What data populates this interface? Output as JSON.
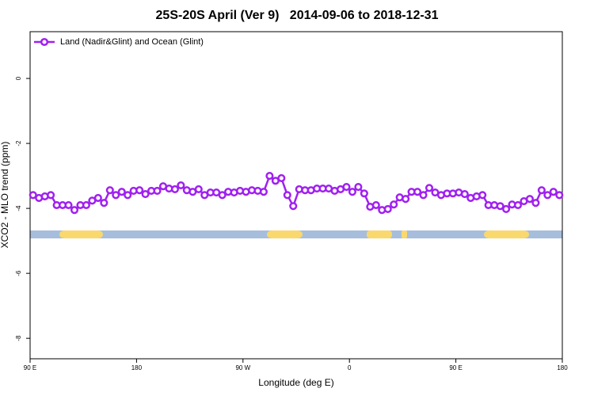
{
  "chart_data": {
    "type": "line",
    "title": "25S-20S April (Ver 9)   2014-09-06 to 2018-12-31",
    "x_label": "Longitude (deg E)",
    "y_label": "XCO2 - MLO trend (ppm)",
    "xlim": [
      90,
      540
    ],
    "xticks": [
      {
        "value": 90,
        "label": "90 E"
      },
      180,
      {
        "value": 270,
        "label": "90 W"
      },
      {
        "value": 360,
        "label": "0"
      },
      {
        "value": 450,
        "label": "90 E"
      },
      {
        "value": 540,
        "label": "180"
      }
    ],
    "ylim": [
      -8.63,
      1.44
    ],
    "yticks": [
      0,
      -2,
      -4,
      -6,
      -8
    ],
    "legend": "top-left",
    "x": [
      92.5,
      97.5,
      102.5,
      107.5,
      112.5,
      117.5,
      122.5,
      127.5,
      132.5,
      137.5,
      142.5,
      147.5,
      152.5,
      157.5,
      162.5,
      167.5,
      172.5,
      177.5,
      182.5,
      187.5,
      192.5,
      197.5,
      202.5,
      207.5,
      212.5,
      217.5,
      222.5,
      227.5,
      232.5,
      237.5,
      242.5,
      247.5,
      252.5,
      257.5,
      262.5,
      267.5,
      272.5,
      277.5,
      282.5,
      287.5,
      292.5,
      297.5,
      302.5,
      307.5,
      312.5,
      317.5,
      322.5,
      327.5,
      332.5,
      337.5,
      342.5,
      347.5,
      352.5,
      357.5,
      362.5,
      367.5,
      372.5,
      377.5,
      382.5,
      387.5,
      392.5,
      397.5,
      402.5,
      407.5,
      412.5,
      417.5,
      422.5,
      427.5,
      432.5,
      437.5,
      442.5,
      447.5,
      452.5,
      457.5,
      462.5,
      467.5,
      472.5,
      477.5,
      482.5,
      487.5,
      492.5,
      497.5,
      502.5,
      507.5,
      512.5,
      517.5,
      522.5,
      527.5,
      532.5,
      537.5
    ],
    "series": [
      {
        "name": "Land (Nadir&Glint) and Ocean (Glint)",
        "color": "#a020f0",
        "values": [
          -3.59,
          -3.68,
          -3.63,
          -3.59,
          -3.9,
          -3.9,
          -3.9,
          -4.05,
          -3.9,
          -3.9,
          -3.76,
          -3.68,
          -3.83,
          -3.44,
          -3.59,
          -3.49,
          -3.59,
          -3.46,
          -3.44,
          -3.56,
          -3.46,
          -3.46,
          -3.32,
          -3.39,
          -3.41,
          -3.29,
          -3.44,
          -3.49,
          -3.41,
          -3.59,
          -3.51,
          -3.51,
          -3.59,
          -3.49,
          -3.51,
          -3.46,
          -3.49,
          -3.44,
          -3.46,
          -3.49,
          -3.0,
          -3.15,
          -3.07,
          -3.59,
          -3.93,
          -3.41,
          -3.44,
          -3.44,
          -3.39,
          -3.39,
          -3.39,
          -3.46,
          -3.41,
          -3.34,
          -3.49,
          -3.34,
          -3.54,
          -3.95,
          -3.9,
          -4.05,
          -4.02,
          -3.88,
          -3.66,
          -3.71,
          -3.49,
          -3.49,
          -3.59,
          -3.37,
          -3.51,
          -3.59,
          -3.54,
          -3.54,
          -3.51,
          -3.56,
          -3.68,
          -3.63,
          -3.59,
          -3.9,
          -3.9,
          -3.93,
          -4.02,
          -3.88,
          -3.9,
          -3.78,
          -3.71,
          -3.83,
          -3.44,
          -3.59,
          -3.49,
          -3.59
        ]
      }
    ]
  }
}
